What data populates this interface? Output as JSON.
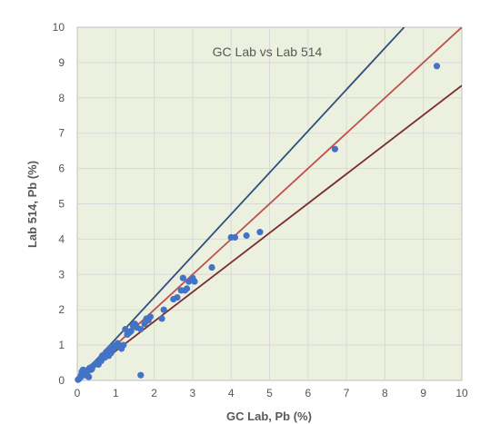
{
  "chart_data": {
    "type": "scatter",
    "title": "GC Lab vs Lab 514",
    "xlabel": "GC Lab, Pb (%)",
    "ylabel": "Lab 514, Pb (%)",
    "xlim": [
      0,
      10
    ],
    "ylim": [
      0,
      10
    ],
    "x_ticks": [
      "0",
      "1",
      "2",
      "3",
      "4",
      "5",
      "6",
      "7",
      "8",
      "9",
      "10"
    ],
    "y_ticks": [
      "0",
      "1",
      "2",
      "3",
      "4",
      "5",
      "6",
      "7",
      "8",
      "9",
      "10"
    ],
    "grid": true,
    "legend": "none",
    "plot_background": "#ebf1de",
    "points": {
      "color": "#4472c4",
      "x": [
        0.02,
        0.05,
        0.08,
        0.1,
        0.12,
        0.15,
        0.18,
        0.2,
        0.22,
        0.25,
        0.28,
        0.3,
        0.32,
        0.35,
        0.38,
        0.4,
        0.45,
        0.5,
        0.55,
        0.6,
        0.62,
        0.65,
        0.7,
        0.72,
        0.75,
        0.8,
        0.82,
        0.85,
        0.88,
        0.9,
        0.95,
        1.0,
        1.05,
        1.1,
        1.15,
        1.2,
        1.25,
        1.3,
        1.35,
        1.4,
        1.45,
        1.5,
        1.55,
        1.65,
        1.75,
        1.8,
        1.85,
        1.9,
        2.2,
        2.25,
        2.5,
        2.6,
        2.7,
        2.75,
        2.8,
        2.85,
        2.9,
        3.0,
        3.05,
        3.5,
        4.0,
        4.1,
        4.4,
        4.75,
        6.7,
        9.35,
        1.65
      ],
      "y": [
        0.02,
        0.05,
        0.08,
        0.15,
        0.25,
        0.3,
        0.2,
        0.15,
        0.28,
        0.25,
        0.12,
        0.1,
        0.35,
        0.3,
        0.32,
        0.4,
        0.45,
        0.5,
        0.45,
        0.6,
        0.55,
        0.7,
        0.72,
        0.65,
        0.8,
        0.85,
        0.7,
        0.9,
        0.78,
        0.95,
        0.9,
        1.0,
        1.05,
        0.95,
        0.9,
        1.0,
        1.45,
        1.3,
        1.35,
        1.4,
        1.55,
        1.6,
        1.5,
        1.45,
        1.6,
        1.75,
        1.7,
        1.8,
        1.75,
        2.0,
        2.3,
        2.35,
        2.55,
        2.9,
        2.55,
        2.6,
        2.8,
        2.9,
        2.8,
        3.2,
        4.05,
        4.05,
        4.1,
        4.2,
        6.55,
        8.9,
        0.15
      ]
    },
    "lines": [
      {
        "color": "#2f4f7f",
        "x": [
          0,
          8.5
        ],
        "y": [
          0,
          10
        ]
      },
      {
        "color": "#c0504d",
        "x": [
          0,
          10
        ],
        "y": [
          0,
          10
        ]
      },
      {
        "color": "#7a2c2a",
        "x": [
          0,
          10
        ],
        "y": [
          0,
          8.35
        ]
      }
    ]
  }
}
